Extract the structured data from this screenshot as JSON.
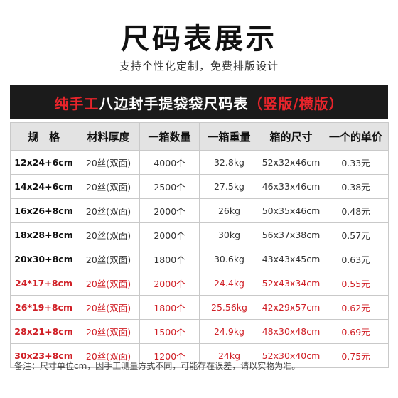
{
  "title": "尺码表展示",
  "subtitle": "支持个性化定制，免费排版设计",
  "banner": {
    "part_red": "纯手工",
    "part_white1": "八边封手提袋袋尺码表",
    "part_red2": "（竖版/横版）"
  },
  "table": {
    "headers": [
      "规　格",
      "材料厚度",
      "一箱数量",
      "一箱重量",
      "箱的尺寸",
      "一个的单价"
    ],
    "rows": [
      {
        "spec": "12x24+6cm",
        "thickness": "20丝(双面)",
        "qty": "4000个",
        "weight": "32.8kg",
        "box": "52x32x46cm",
        "price": "0.33元",
        "highlight": false
      },
      {
        "spec": "14x24+6cm",
        "thickness": "20丝(双面)",
        "qty": "2500个",
        "weight": "27.5kg",
        "box": "46x33x46cm",
        "price": "0.38元",
        "highlight": false
      },
      {
        "spec": "16x26+8cm",
        "thickness": "20丝(双面)",
        "qty": "2000个",
        "weight": "26kg",
        "box": "50x35x46cm",
        "price": "0.48元",
        "highlight": false
      },
      {
        "spec": "18x28+8cm",
        "thickness": "20丝(双面)",
        "qty": "2000个",
        "weight": "30kg",
        "box": "56x37x38cm",
        "price": "0.57元",
        "highlight": false
      },
      {
        "spec": "20x30+8cm",
        "thickness": "20丝(双面)",
        "qty": "1800个",
        "weight": "30.6kg",
        "box": "43x43x45cm",
        "price": "0.63元",
        "highlight": false
      },
      {
        "spec": "24*17+8cm",
        "thickness": "20丝(双面)",
        "qty": "2000个",
        "weight": "24.4kg",
        "box": "52x43x34cm",
        "price": "0.55元",
        "highlight": true
      },
      {
        "spec": "26*19+8cm",
        "thickness": "20丝(双面)",
        "qty": "1800个",
        "weight": "25.56kg",
        "box": "42x29x57cm",
        "price": "0.62元",
        "highlight": true
      },
      {
        "spec": "28x21+8cm",
        "thickness": "20丝(双面)",
        "qty": "1500个",
        "weight": "24.9kg",
        "box": "48x30x48cm",
        "price": "0.69元",
        "highlight": true
      },
      {
        "spec": "30x23+8cm",
        "thickness": "20丝(双面)",
        "qty": "1200个",
        "weight": "24kg",
        "box": "52x30x40cm",
        "price": "0.75元",
        "highlight": true
      }
    ]
  },
  "note": "备注：尺寸单位cm，因手工测量方式不同，可能存在误差，请以实物为准。",
  "colors": {
    "accent_red": "#e8242b",
    "banner_bg": "#1b1b1b",
    "header_bg": "#e3e3e3"
  }
}
